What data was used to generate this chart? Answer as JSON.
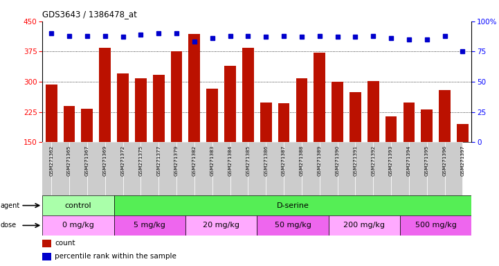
{
  "title": "GDS3643 / 1386478_at",
  "samples": [
    "GSM271362",
    "GSM271365",
    "GSM271367",
    "GSM271369",
    "GSM271372",
    "GSM271375",
    "GSM271377",
    "GSM271379",
    "GSM271382",
    "GSM271383",
    "GSM271384",
    "GSM271385",
    "GSM271386",
    "GSM271387",
    "GSM271388",
    "GSM271389",
    "GSM271390",
    "GSM271391",
    "GSM271392",
    "GSM271393",
    "GSM271394",
    "GSM271395",
    "GSM271396",
    "GSM271397"
  ],
  "counts": [
    294,
    240,
    233,
    385,
    320,
    308,
    318,
    375,
    418,
    283,
    340,
    385,
    248,
    247,
    308,
    373,
    300,
    275,
    302,
    215,
    248,
    232,
    280,
    195
  ],
  "percentiles": [
    90,
    88,
    88,
    88,
    87,
    89,
    90,
    90,
    83,
    86,
    88,
    88,
    87,
    88,
    87,
    88,
    87,
    87,
    88,
    86,
    85,
    85,
    88,
    75
  ],
  "ylim_left": [
    150,
    450
  ],
  "ylim_right": [
    0,
    100
  ],
  "yticks_left": [
    150,
    225,
    300,
    375,
    450
  ],
  "yticks_right": [
    0,
    25,
    50,
    75,
    100
  ],
  "bar_color": "#bb1100",
  "dot_color": "#0000cc",
  "agent_groups": [
    {
      "label": "control",
      "start": 0,
      "end": 4,
      "color": "#aaffaa"
    },
    {
      "label": "D-serine",
      "start": 4,
      "end": 24,
      "color": "#55ee55"
    }
  ],
  "dose_groups": [
    {
      "label": "0 mg/kg",
      "start": 0,
      "end": 4,
      "color": "#ffaaff"
    },
    {
      "label": "5 mg/kg",
      "start": 4,
      "end": 8,
      "color": "#ee66ee"
    },
    {
      "label": "20 mg/kg",
      "start": 8,
      "end": 12,
      "color": "#ffaaff"
    },
    {
      "label": "50 mg/kg",
      "start": 12,
      "end": 16,
      "color": "#ee66ee"
    },
    {
      "label": "200 mg/kg",
      "start": 16,
      "end": 20,
      "color": "#ffaaff"
    },
    {
      "label": "500 mg/kg",
      "start": 20,
      "end": 24,
      "color": "#ee66ee"
    }
  ],
  "legend_count_color": "#bb1100",
  "legend_dot_color": "#0000cc",
  "tick_label_bg": "#cccccc",
  "plot_bg": "#ffffff"
}
